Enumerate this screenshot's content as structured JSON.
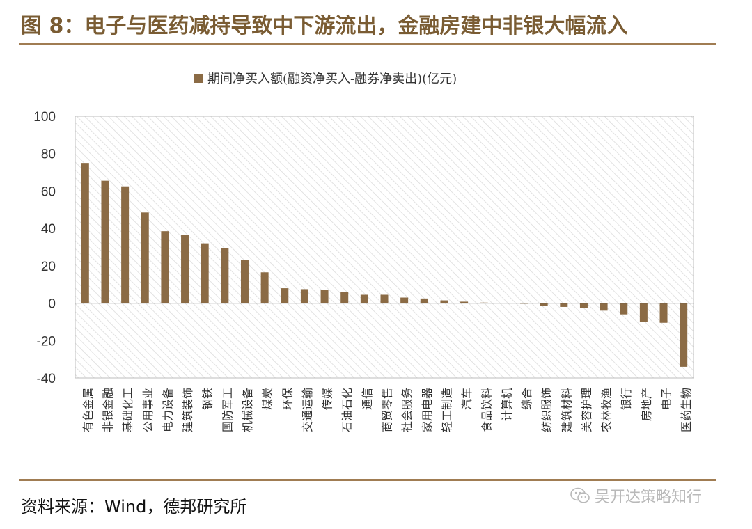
{
  "header": {
    "title": "图 8：电子与医药减持导致中下游流出，金融房建中非银大幅流入"
  },
  "footer": {
    "source": "资料来源：Wind，德邦研究所",
    "watermark": "吴开达策略知行",
    "watermark_icon": "wechat-icon"
  },
  "colors": {
    "bar": "#8b6b45",
    "title": "#7a5c33",
    "rule": "#a07c52",
    "hatch": "#d9d9d9"
  },
  "chart_data": {
    "type": "bar",
    "title": "",
    "legend": [
      "期间净买入额(融资净买入-融券净卖出)(亿元)"
    ],
    "legend_position": "top",
    "xlabel": "",
    "ylabel": "",
    "ylim": [
      -40,
      100
    ],
    "yticks": [
      100,
      80,
      60,
      40,
      20,
      0,
      -20,
      -40
    ],
    "grid": false,
    "categories": [
      "有色金属",
      "非银金融",
      "基础化工",
      "公用事业",
      "电力设备",
      "建筑装饰",
      "钢铁",
      "国防军工",
      "机械设备",
      "煤炭",
      "环保",
      "交通运输",
      "传媒",
      "石油石化",
      "通信",
      "商贸零售",
      "社会服务",
      "家用电器",
      "轻工制造",
      "汽车",
      "食品饮料",
      "计算机",
      "综合",
      "纺织服饰",
      "建筑材料",
      "美容护理",
      "农林牧渔",
      "银行",
      "房地产",
      "电子",
      "医药生物"
    ],
    "series": [
      {
        "name": "期间净买入额(融资净买入-融券净卖出)(亿元)",
        "values": [
          75,
          65.5,
          62.5,
          48.5,
          38.5,
          36.5,
          32,
          29.5,
          23,
          16.5,
          8,
          7.5,
          7,
          6,
          4.5,
          4.5,
          3,
          2.5,
          1.5,
          0.8,
          0.3,
          0.1,
          -0.3,
          -1.5,
          -2,
          -2.5,
          -4,
          -6,
          -10,
          -10.5,
          -34
        ]
      }
    ]
  }
}
